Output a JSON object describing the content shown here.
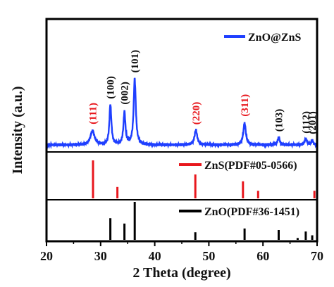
{
  "chart_data": {
    "type": "line",
    "title": "",
    "xlabel": "2 Theta (degree)",
    "ylabel": "Intensity (a.u.)",
    "xlim": [
      20,
      70
    ],
    "x_ticks": [
      20,
      30,
      40,
      50,
      60,
      70
    ],
    "y_ticks_shown": false,
    "grid": false,
    "legend_placement": "inside, right of each panel",
    "panels": {
      "pattern": {
        "name": "ZnO@ZnS",
        "color": "#1f3fff",
        "baseline": 0,
        "peaks": [
          {
            "x": 28.5,
            "height": 0.18,
            "width": 0.45,
            "label": "(111)",
            "label_color": "#e8171d"
          },
          {
            "x": 31.8,
            "height": 0.52,
            "width": 0.22,
            "label": "(100)",
            "label_color": "#111111"
          },
          {
            "x": 34.4,
            "height": 0.42,
            "width": 0.22,
            "label": "(002)",
            "label_color": "#111111"
          },
          {
            "x": 36.3,
            "height": 0.85,
            "width": 0.24,
            "label": "(101)",
            "label_color": "#111111"
          },
          {
            "x": 47.6,
            "height": 0.19,
            "width": 0.3,
            "label": "(220)",
            "label_color": "#e8171d"
          },
          {
            "x": 56.6,
            "height": 0.28,
            "width": 0.28,
            "label": "(311)",
            "label_color": "#e8171d"
          },
          {
            "x": 62.9,
            "height": 0.09,
            "width": 0.25,
            "label": "(103)",
            "label_color": "#111111"
          },
          {
            "x": 67.9,
            "height": 0.08,
            "width": 0.25,
            "label": "(112)",
            "label_color": "#111111"
          },
          {
            "x": 69.1,
            "height": 0.06,
            "width": 0.2,
            "label": "(201)",
            "label_color": "#111111"
          }
        ]
      },
      "zns_reference": {
        "name": "ZnS(PDF#05-0566)",
        "color": "#e8171d",
        "lines": [
          {
            "x": 28.6,
            "height": 1.0
          },
          {
            "x": 33.1,
            "height": 0.3
          },
          {
            "x": 47.5,
            "height": 0.63
          },
          {
            "x": 56.3,
            "height": 0.45
          },
          {
            "x": 59.1,
            "height": 0.2
          },
          {
            "x": 69.5,
            "height": 0.2
          }
        ]
      },
      "zno_reference": {
        "name": "ZnO(PDF#36-1451)",
        "color": "#000000",
        "lines": [
          {
            "x": 31.8,
            "height": 0.57
          },
          {
            "x": 34.4,
            "height": 0.43
          },
          {
            "x": 36.3,
            "height": 1.0
          },
          {
            "x": 47.5,
            "height": 0.2
          },
          {
            "x": 56.6,
            "height": 0.3
          },
          {
            "x": 62.9,
            "height": 0.26
          },
          {
            "x": 66.4,
            "height": 0.05
          },
          {
            "x": 67.9,
            "height": 0.22
          },
          {
            "x": 69.1,
            "height": 0.12
          }
        ]
      }
    }
  }
}
